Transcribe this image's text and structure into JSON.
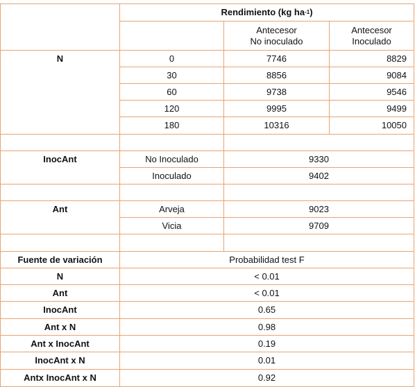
{
  "header": {
    "yield_label": "Rendimiento (kg ha",
    "yield_sup": "-1",
    "yield_close": ")",
    "col_no_inoc": [
      "Antecesor",
      "No inoculado"
    ],
    "col_inoc": [
      "Antecesor",
      "Inoculado"
    ]
  },
  "n_block": {
    "label": "N",
    "rows": [
      {
        "dose": "0",
        "no_inoc": "7746",
        "inoc": "8829"
      },
      {
        "dose": "30",
        "no_inoc": "8856",
        "inoc": "9084"
      },
      {
        "dose": "60",
        "no_inoc": "9738",
        "inoc": "9546"
      },
      {
        "dose": "120",
        "no_inoc": "9995",
        "inoc": "9499"
      },
      {
        "dose": "180",
        "no_inoc": "10316",
        "inoc": "10050"
      }
    ]
  },
  "inoc_block": {
    "label": "InocAnt",
    "rows": [
      {
        "name": "No Inoculado",
        "value": "9330"
      },
      {
        "name": "Inoculado",
        "value": "9402"
      }
    ]
  },
  "ant_block": {
    "label": "Ant",
    "rows": [
      {
        "name": "Arveja",
        "value": "9023"
      },
      {
        "name": "Vicia",
        "value": "9709"
      }
    ]
  },
  "anova": {
    "source_header": "Fuente de variación",
    "prob_header": "Probabilidad test F",
    "rows": [
      {
        "source": "N",
        "p": "< 0.01"
      },
      {
        "source": "Ant",
        "p": "< 0.01"
      },
      {
        "source": "InocAnt",
        "p": "0.65"
      },
      {
        "source": "Ant x N",
        "p": "0.98"
      },
      {
        "source": "Ant x InocAnt",
        "p": "0.19"
      },
      {
        "source": "InocAnt x N",
        "p": "0.01"
      },
      {
        "source": "Antx InocAnt x N",
        "p": "0.92"
      }
    ]
  }
}
